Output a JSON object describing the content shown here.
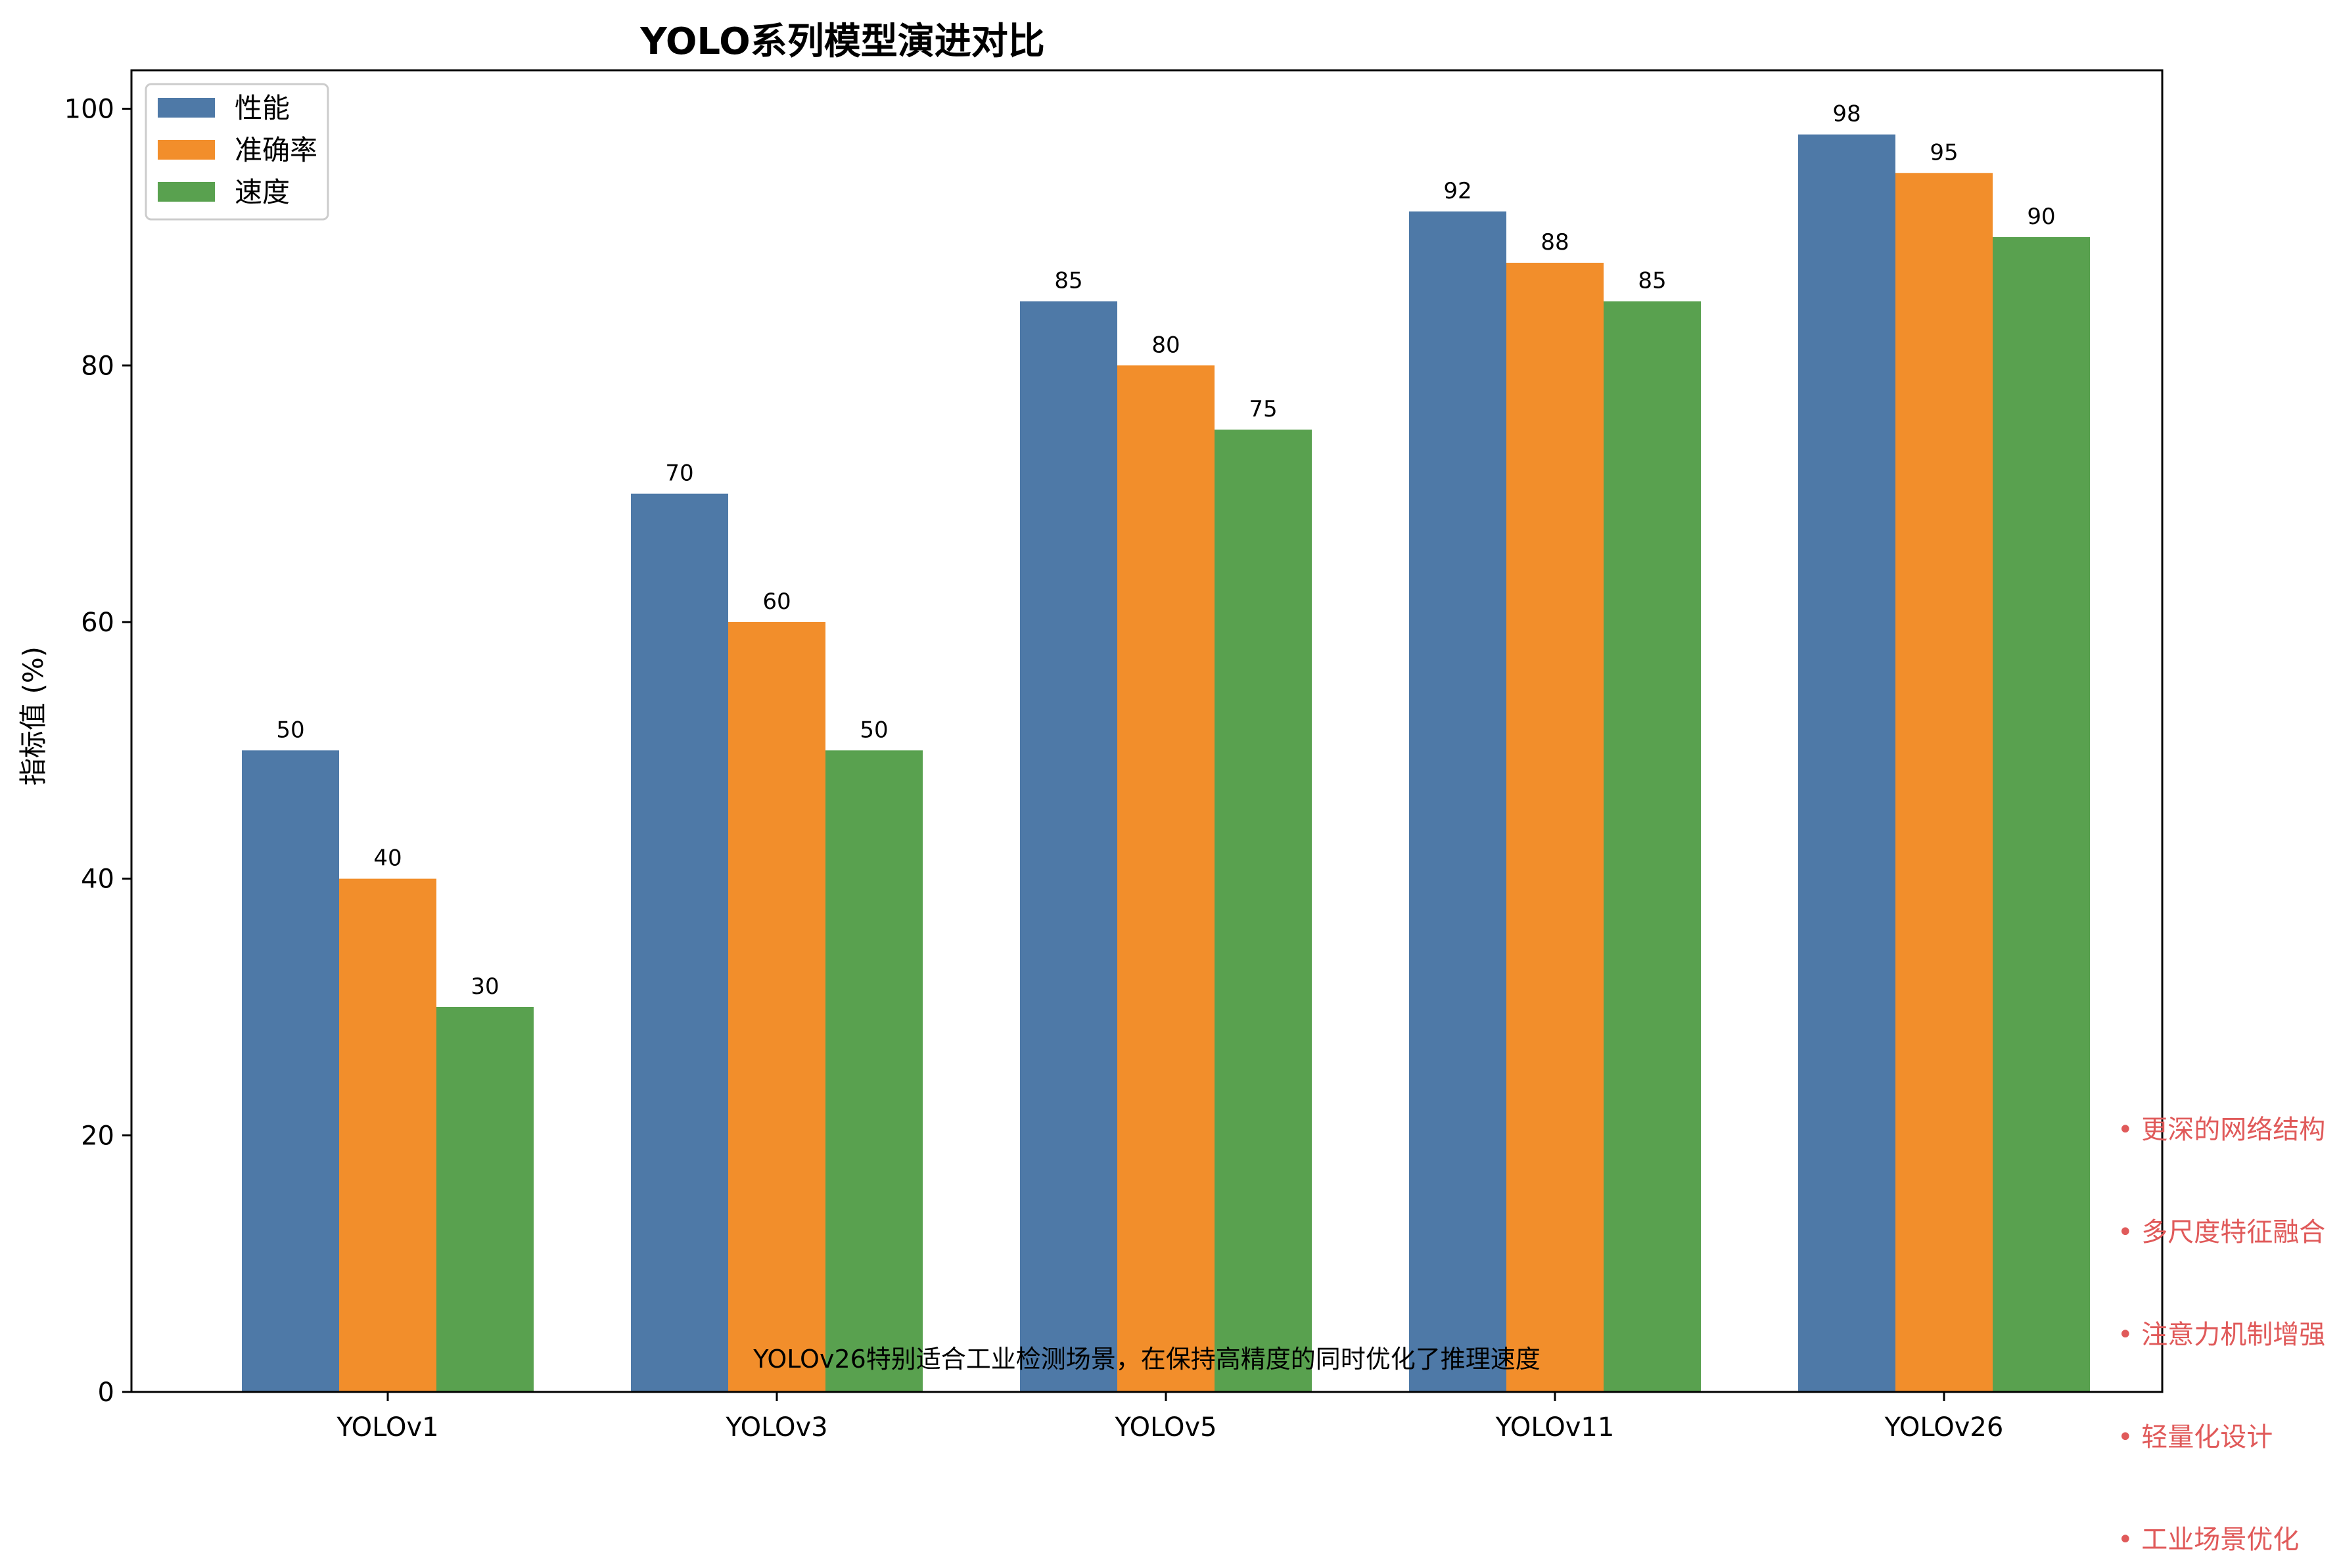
{
  "chart_data": {
    "type": "bar",
    "title": "YOLO系列模型演进对比",
    "xlabel": "",
    "ylabel": "指标值 (%)",
    "ylim": [
      0,
      103
    ],
    "yticks": [
      0,
      20,
      40,
      60,
      80,
      100
    ],
    "categories": [
      "YOLOv1",
      "YOLOv3",
      "YOLOv5",
      "YOLOv11",
      "YOLOv26"
    ],
    "series": [
      {
        "name": "性能",
        "color": "#4e79a7",
        "values": [
          50,
          70,
          85,
          92,
          98
        ]
      },
      {
        "name": "准确率",
        "color": "#f28e2b",
        "values": [
          40,
          60,
          80,
          88,
          95
        ]
      },
      {
        "name": "速度",
        "color": "#59a14f",
        "values": [
          30,
          50,
          75,
          85,
          90
        ]
      }
    ],
    "grid": false,
    "legend_position": "top-left",
    "annotation": "YOLOv26特别适合工业检测场景，在保持高精度的同时优化了推理速度",
    "side_notes": [
      "• 更深的网络结构",
      "• 多尺度特征融合",
      "• 注意力机制增强",
      "• 轻量化设计",
      "• 工业场景优化"
    ],
    "side_notes_color": "#e05a5a"
  }
}
